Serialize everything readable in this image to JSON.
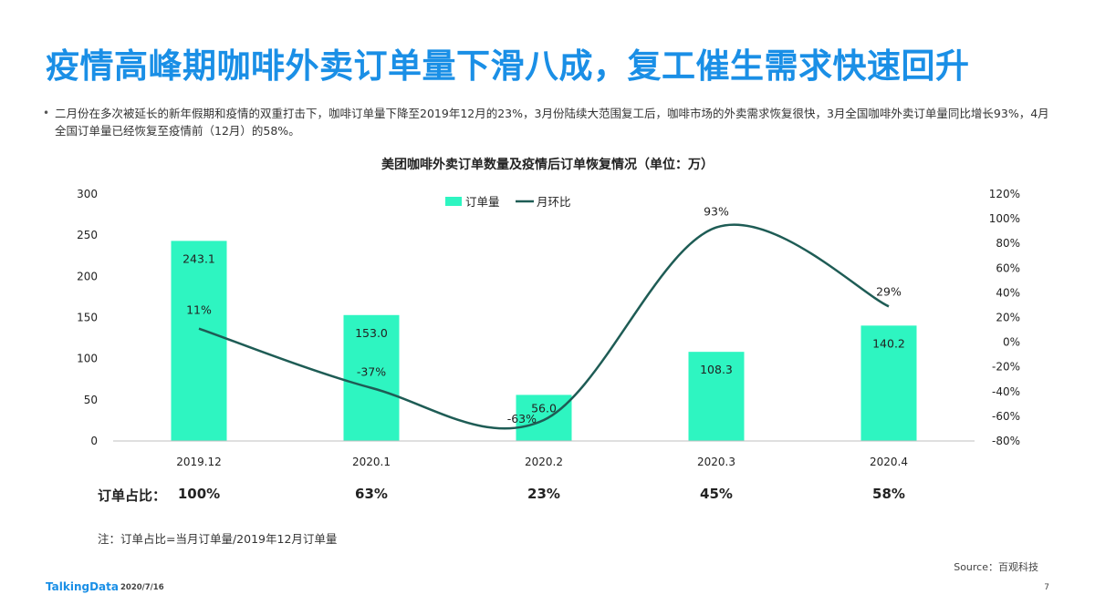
{
  "slide": {
    "title": "疫情高峰期咖啡外卖订单量下滑八成，复工催生需求快速回升",
    "bullet": "二月份在多次被延长的新年假期和疫情的双重打击下，咖啡订单量下降至2019年12月的23%，3月份陆续大范围复工后，咖啡市场的外卖需求恢复很快，3月全国咖啡外卖订单量同比增长93%，4月全国订单量已经恢复至疫情前（12月）的58%。",
    "order_ratio_label": "订单占比：",
    "order_ratios": [
      "100%",
      "63%",
      "23%",
      "45%",
      "58%"
    ],
    "note": "注：订单占比=当月订单量/2019年12月订单量",
    "source": "Source：百观科技",
    "brand": "TalkingData",
    "date": "2020/7/16",
    "page_number": "7"
  },
  "chart_data": {
    "type": "bar+line",
    "title": "美团咖啡外卖订单数量及疫情后订单恢复情况（单位：万）",
    "categories": [
      "2019.12",
      "2020.1",
      "2020.2",
      "2020.3",
      "2020.4"
    ],
    "series": [
      {
        "name": "订单量",
        "type": "bar",
        "axis": "left",
        "values": [
          243.1,
          153.0,
          56.0,
          108.3,
          140.2
        ],
        "labels": [
          "243.1",
          "153.0",
          "56.0",
          "108.3",
          "140.2"
        ],
        "color": "#2ef5c1"
      },
      {
        "name": "月环比",
        "type": "line",
        "axis": "right",
        "smooth": true,
        "values": [
          11,
          -37,
          -63,
          93,
          29
        ],
        "labels": [
          "11%",
          "-37%",
          "-63%",
          "93%",
          "29%"
        ],
        "color": "#1e5c55"
      }
    ],
    "left_axis": {
      "min": 0,
      "max": 300,
      "ticks": [
        "0",
        "50",
        "100",
        "150",
        "200",
        "250",
        "300"
      ]
    },
    "right_axis": {
      "min": -80,
      "max": 120,
      "ticks": [
        "-80%",
        "-60%",
        "-40%",
        "-20%",
        "0%",
        "20%",
        "40%",
        "60%",
        "80%",
        "100%",
        "120%"
      ]
    },
    "legend_position": "top-center",
    "grid": false
  }
}
